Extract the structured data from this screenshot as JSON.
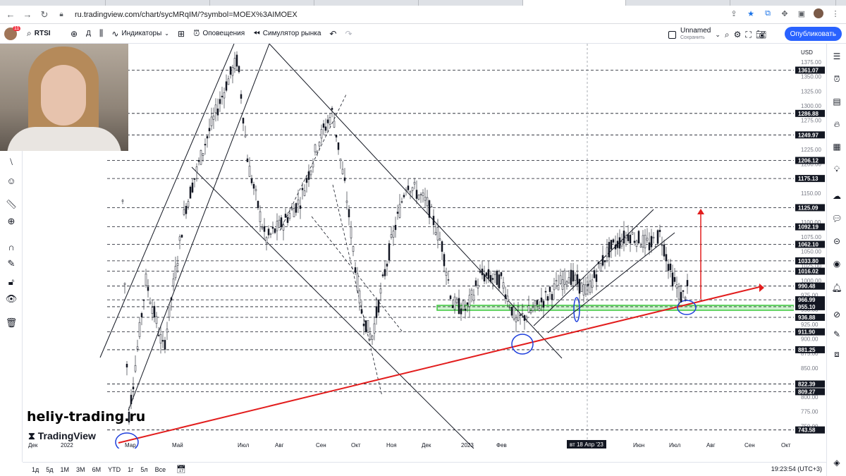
{
  "browser": {
    "url": "ru.tradingview.com/chart/sycMRqIM/?symbol=MOEX%3AIMOEX"
  },
  "toolbar": {
    "symbol": "RTSI",
    "interval": "Д",
    "indicators_label": "Индикаторы",
    "alerts_label": "Оповещения",
    "replay_label": "Симулятор рынка",
    "layout_name": "Unnamed",
    "save_label": "Сохранить",
    "publish_label": "Опубликовать",
    "avatar_badge": "11"
  },
  "price_axis": {
    "currency": "USD",
    "ticks": [
      1375,
      1350,
      1325,
      1300,
      1275,
      1250,
      1225,
      1200,
      1175,
      1150,
      1125,
      1100,
      1075,
      1050,
      1025,
      1000,
      975,
      950,
      925,
      900,
      875,
      850,
      825,
      800,
      775,
      750
    ],
    "levels": [
      "1361.07",
      "1286.88",
      "1249.97",
      "1206.12",
      "1175.13",
      "1125.09",
      "1092.19",
      "1062.10",
      "1033.80",
      "1016.02",
      "990.48",
      "966.99",
      "955.10",
      "936.88",
      "911.90",
      "881.25",
      "822.39",
      "809.27",
      "743.58"
    ]
  },
  "time_axis": {
    "labels": [
      "Дек",
      "2022",
      "Мар",
      "Май",
      "Июл",
      "Авг",
      "Сен",
      "Окт",
      "Ноя",
      "Дек",
      "2023",
      "Фев",
      "Июн",
      "Июл",
      "Авг",
      "Сен",
      "Окт"
    ],
    "crosshair_label": "вт 18 Апр '23"
  },
  "bottom": {
    "ranges": [
      "1д",
      "5д",
      "1М",
      "3М",
      "6М",
      "YTD",
      "1г",
      "5л",
      "Все"
    ],
    "clock": "19:23:54 (UTC+3)"
  },
  "watermark": {
    "site": "heliy-trading.ru",
    "brand": "TradingView"
  },
  "colors": {
    "accent": "#2962ff",
    "trend_red": "#e21d1d",
    "zone_green": "#3cc93c",
    "circle_blue": "#1f3fdc"
  }
}
